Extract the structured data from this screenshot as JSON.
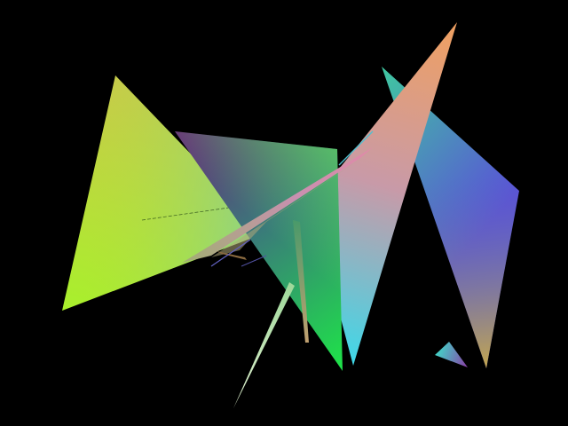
{
  "scene": {
    "background": "#000000",
    "description_type": "rendered-3d-triangles",
    "triangles": [
      {
        "name": "triangle-left-yellow-green",
        "colors": [
          "#c9c94a",
          "#a8f02c",
          "#7fd0a0"
        ]
      },
      {
        "name": "triangle-center-purple-green",
        "colors": [
          "#6a2a7a",
          "#1fe04a",
          "#5a8a9a"
        ]
      },
      {
        "name": "triangle-tall-orange-cyan",
        "colors": [
          "#f0a060",
          "#3fd8e8",
          "#c89aa8"
        ]
      },
      {
        "name": "triangle-right-teal-blue",
        "colors": [
          "#3fc8a0",
          "#5a50d8",
          "#d0b040"
        ]
      },
      {
        "name": "sliver-diagonal-pink",
        "colors": [
          "#c890b0",
          "#9fc070",
          "#e08aa8"
        ]
      },
      {
        "name": "sliver-long-pale-green",
        "colors": [
          "#d0e8c0",
          "#9fd89a",
          "#c0d0a0"
        ]
      },
      {
        "name": "small-triangle-teal-purple",
        "colors": [
          "#40d8c8",
          "#8a40a8",
          "#30b0c0"
        ]
      }
    ]
  }
}
